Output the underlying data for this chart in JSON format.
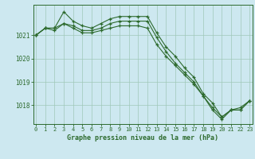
{
  "series1": [
    1021.0,
    1021.3,
    1021.3,
    1022.0,
    1021.6,
    1021.4,
    1021.3,
    1021.5,
    1021.7,
    1021.8,
    1021.8,
    1021.8,
    1021.8,
    1021.1,
    1020.5,
    1020.1,
    1019.6,
    1019.2,
    1018.5,
    1018.1,
    1017.5,
    1017.8,
    1017.9,
    1018.2
  ],
  "series2": [
    1021.0,
    1021.3,
    1021.2,
    1021.5,
    1021.4,
    1021.2,
    1021.2,
    1021.3,
    1021.5,
    1021.6,
    1021.6,
    1021.6,
    1021.6,
    1020.9,
    1020.3,
    1019.8,
    1019.4,
    1019.0,
    1018.4,
    1017.9,
    1017.5,
    1017.8,
    1017.8,
    1018.2
  ],
  "series3": [
    1021.0,
    1021.3,
    1021.3,
    1021.5,
    1021.3,
    1021.1,
    1021.1,
    1021.2,
    1021.3,
    1021.4,
    1021.4,
    1021.4,
    1021.3,
    1020.6,
    1020.1,
    1019.7,
    1019.3,
    1018.9,
    1018.4,
    1017.8,
    1017.4,
    1017.8,
    1017.8,
    1018.2
  ],
  "line_color": "#2d6a2d",
  "bg_color": "#cde8f0",
  "grid_color": "#a0c8b8",
  "xlabel": "Graphe pression niveau de la mer (hPa)",
  "yticks": [
    1018,
    1019,
    1020,
    1021
  ],
  "xticks": [
    0,
    1,
    2,
    3,
    4,
    5,
    6,
    7,
    8,
    9,
    10,
    11,
    12,
    13,
    14,
    15,
    16,
    17,
    18,
    19,
    20,
    21,
    22,
    23
  ],
  "ylim": [
    1017.2,
    1022.3
  ],
  "xlim": [
    -0.3,
    23.3
  ]
}
